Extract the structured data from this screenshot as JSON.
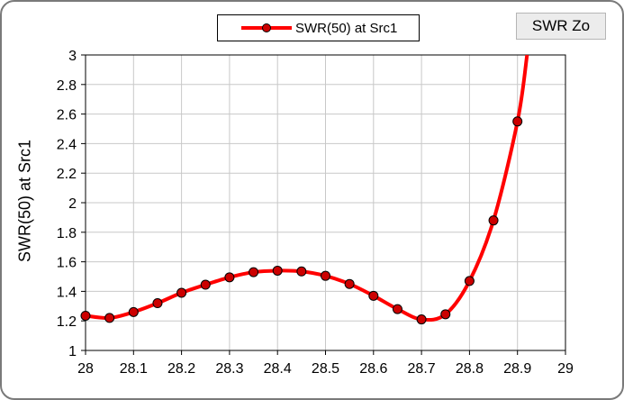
{
  "button": {
    "label": "SWR Zo"
  },
  "chart_data": {
    "type": "line",
    "ylabel": "SWR(50) at Src1",
    "xlabel": "",
    "xlim": [
      28,
      29
    ],
    "ylim": [
      1,
      3
    ],
    "grid": true,
    "legend_position": "top-center",
    "xticks": [
      "28",
      "28.1",
      "28.2",
      "28.3",
      "28.4",
      "28.5",
      "28.6",
      "28.7",
      "28.8",
      "28.9",
      "29"
    ],
    "yticks": [
      "1",
      "1.2",
      "1.4",
      "1.6",
      "1.8",
      "2",
      "2.2",
      "2.4",
      "2.6",
      "2.8",
      "3"
    ],
    "series": [
      {
        "name": "SWR(50) at Src1",
        "color": "#ff0000",
        "marker_color": "#cc0000",
        "x": [
          28,
          28.05,
          28.1,
          28.15,
          28.2,
          28.25,
          28.3,
          28.35,
          28.4,
          28.45,
          28.5,
          28.55,
          28.6,
          28.65,
          28.7,
          28.75,
          28.8,
          28.85,
          28.9
        ],
        "y": [
          1.235,
          1.22,
          1.26,
          1.32,
          1.39,
          1.445,
          1.495,
          1.53,
          1.54,
          1.535,
          1.505,
          1.45,
          1.37,
          1.28,
          1.21,
          1.245,
          1.47,
          1.88,
          2.55
        ]
      }
    ],
    "extension": {
      "x": [
        28.9,
        28.92
      ],
      "y": [
        2.55,
        3.0
      ]
    }
  }
}
